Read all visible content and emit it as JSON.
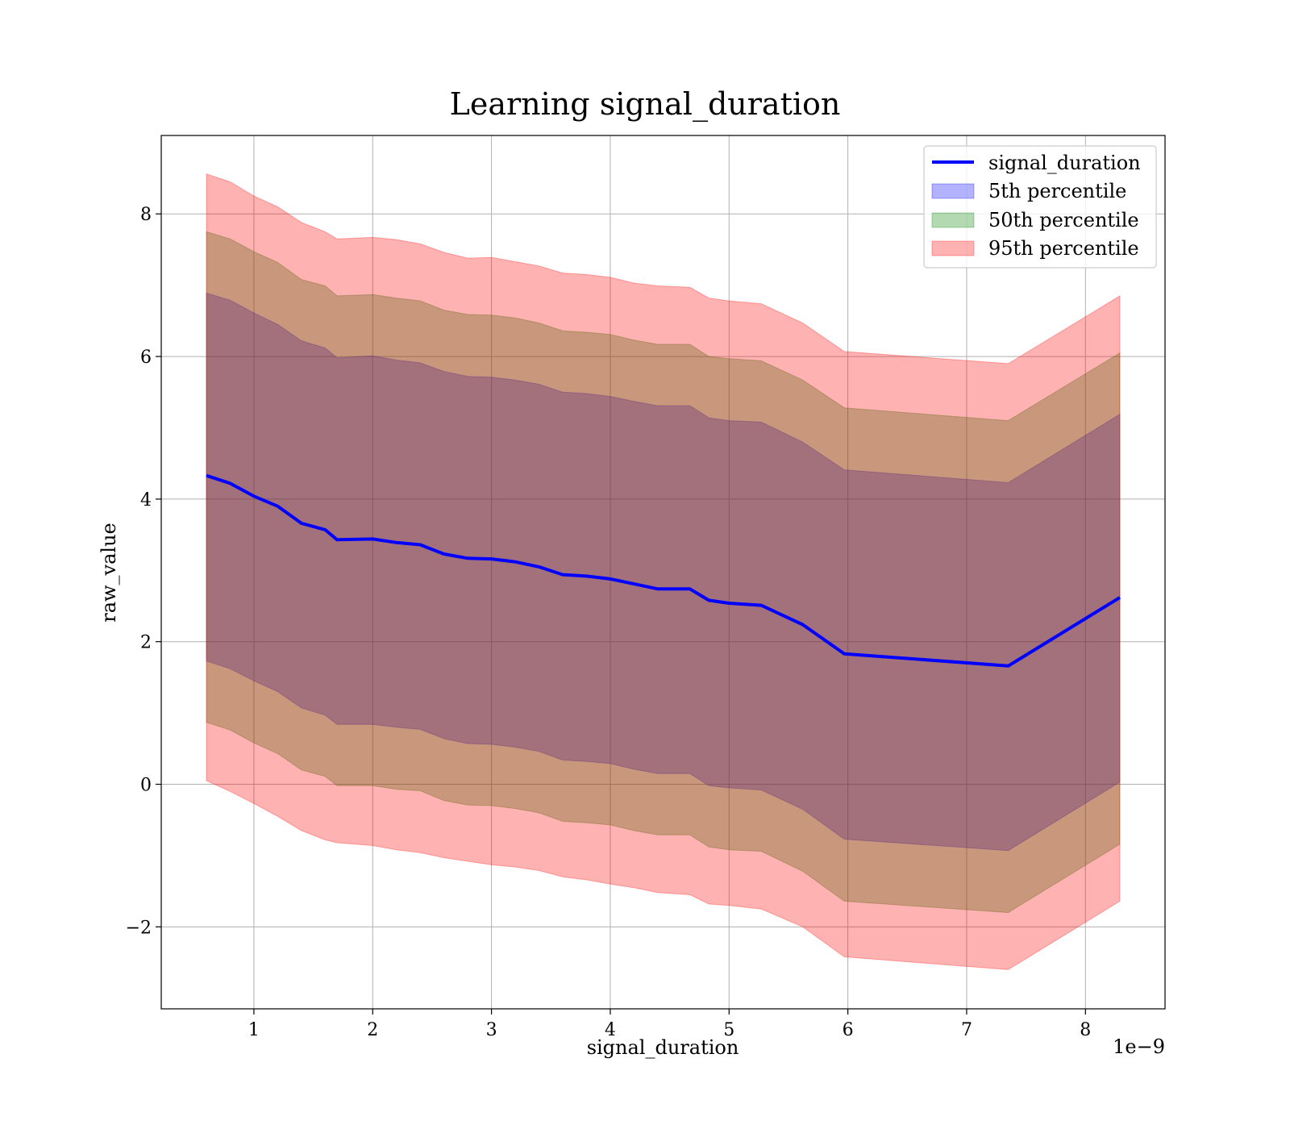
{
  "chart_data": {
    "type": "area",
    "title": "Learning signal_duration",
    "xlabel": "signal_duration",
    "ylabel": "raw_value",
    "x_offset_text": "1e−9",
    "x_ticks": [
      1,
      2,
      3,
      4,
      5,
      6,
      7,
      8
    ],
    "x_tick_labels": [
      "1",
      "2",
      "3",
      "4",
      "5",
      "6",
      "7",
      "8"
    ],
    "y_ticks": [
      -2,
      0,
      2,
      4,
      6,
      8
    ],
    "y_tick_labels": [
      "−2",
      "0",
      "2",
      "4",
      "6",
      "8"
    ],
    "xlim": [
      0.22,
      8.67
    ],
    "ylim": [
      -3.15,
      9.1
    ],
    "grid": true,
    "legend_position": "top-right",
    "x": [
      0.6,
      0.8,
      1.0,
      1.2,
      1.4,
      1.6,
      1.7,
      2.0,
      2.2,
      2.4,
      2.6,
      2.8,
      3.0,
      3.2,
      3.4,
      3.6,
      3.8,
      4.0,
      4.2,
      4.4,
      4.67,
      4.83,
      5.0,
      5.27,
      5.62,
      5.97,
      7.35,
      8.29
    ],
    "series": [
      {
        "name": "signal_duration",
        "kind": "line",
        "color": "#0000ff",
        "values": [
          4.33,
          4.22,
          4.04,
          3.9,
          3.66,
          3.57,
          3.43,
          3.44,
          3.39,
          3.36,
          3.23,
          3.17,
          3.16,
          3.12,
          3.05,
          2.94,
          2.92,
          2.88,
          2.81,
          2.74,
          2.74,
          2.58,
          2.54,
          2.51,
          2.24,
          1.83,
          1.66,
          2.62
        ]
      },
      {
        "name": "5th percentile",
        "kind": "band",
        "color": "#0000ff",
        "lower": [
          1.73,
          1.62,
          1.45,
          1.3,
          1.07,
          0.97,
          0.84,
          0.84,
          0.8,
          0.77,
          0.64,
          0.57,
          0.56,
          0.52,
          0.46,
          0.34,
          0.32,
          0.29,
          0.21,
          0.15,
          0.15,
          -0.02,
          -0.05,
          -0.08,
          -0.35,
          -0.77,
          -0.93,
          0.03
        ],
        "upper": [
          6.89,
          6.79,
          6.61,
          6.45,
          6.22,
          6.12,
          5.98,
          6.01,
          5.95,
          5.91,
          5.79,
          5.72,
          5.71,
          5.67,
          5.61,
          5.5,
          5.48,
          5.44,
          5.37,
          5.31,
          5.31,
          5.14,
          5.1,
          5.08,
          4.8,
          4.41,
          4.23,
          5.19
        ]
      },
      {
        "name": "50th percentile",
        "kind": "band",
        "color": "#008000",
        "lower": [
          0.87,
          0.76,
          0.58,
          0.43,
          0.2,
          0.11,
          -0.02,
          -0.02,
          -0.07,
          -0.09,
          -0.23,
          -0.29,
          -0.3,
          -0.34,
          -0.4,
          -0.52,
          -0.54,
          -0.57,
          -0.65,
          -0.71,
          -0.71,
          -0.88,
          -0.92,
          -0.94,
          -1.22,
          -1.64,
          -1.8,
          -0.84
        ],
        "upper": [
          7.75,
          7.65,
          7.47,
          7.32,
          7.08,
          6.99,
          6.85,
          6.87,
          6.82,
          6.78,
          6.65,
          6.59,
          6.58,
          6.54,
          6.47,
          6.36,
          6.34,
          6.31,
          6.23,
          6.17,
          6.17,
          6.0,
          5.97,
          5.94,
          5.67,
          5.28,
          5.1,
          6.05
        ]
      },
      {
        "name": "95th percentile",
        "kind": "band",
        "color": "#ff0000",
        "lower": [
          0.05,
          -0.1,
          -0.27,
          -0.45,
          -0.65,
          -0.78,
          -0.82,
          -0.86,
          -0.92,
          -0.96,
          -1.03,
          -1.08,
          -1.13,
          -1.16,
          -1.21,
          -1.3,
          -1.34,
          -1.4,
          -1.45,
          -1.52,
          -1.55,
          -1.68,
          -1.7,
          -1.75,
          -2.0,
          -2.42,
          -2.6,
          -1.64
        ],
        "upper": [
          8.56,
          8.45,
          8.25,
          8.1,
          7.88,
          7.75,
          7.65,
          7.67,
          7.64,
          7.58,
          7.46,
          7.38,
          7.39,
          7.33,
          7.27,
          7.17,
          7.15,
          7.11,
          7.03,
          6.99,
          6.97,
          6.82,
          6.78,
          6.74,
          6.47,
          6.07,
          5.9,
          6.85
        ]
      }
    ]
  }
}
